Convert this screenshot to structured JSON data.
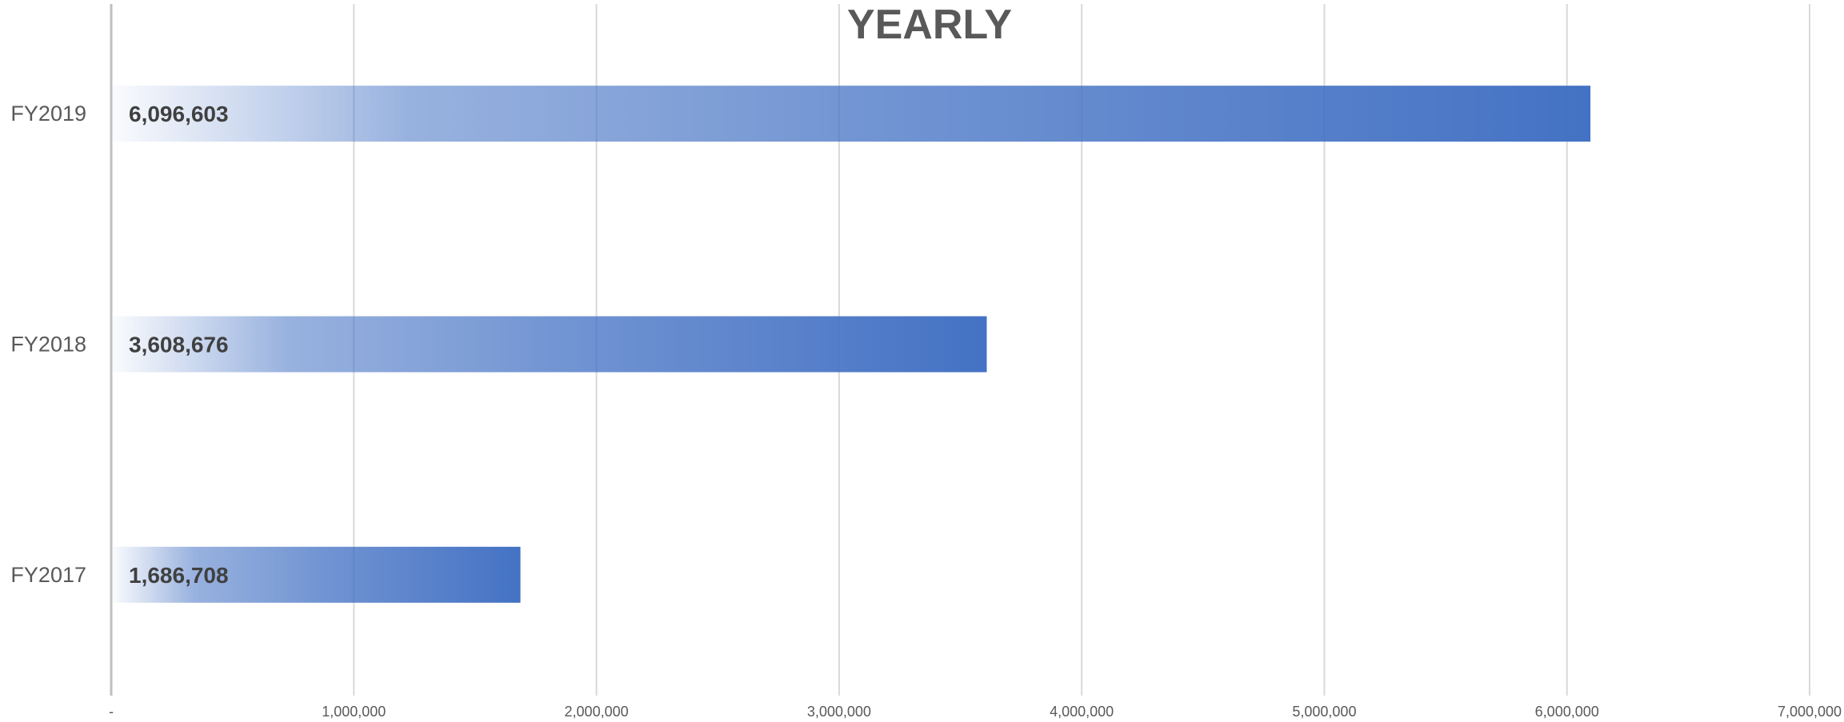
{
  "chart_data": {
    "type": "bar",
    "orientation": "horizontal",
    "title": "YEARLY",
    "categories": [
      "FY2019",
      "FY2018",
      "FY2017"
    ],
    "values": [
      6096603,
      3608676,
      1686708
    ],
    "value_labels": [
      "6,096,603",
      "3,608,676",
      "1,686,708"
    ],
    "xlim": [
      0,
      7000000
    ],
    "x_ticks": [
      0,
      1000000,
      2000000,
      3000000,
      4000000,
      5000000,
      6000000,
      7000000
    ],
    "x_tick_labels": [
      "-",
      "1,000,000",
      "2,000,000",
      "3,000,000",
      "4,000,000",
      "5,000,000",
      "6,000,000",
      "7,000,000"
    ],
    "grid": "vertical",
    "legend": "none",
    "colors": {
      "bar": "#4472C4",
      "grid": "#D9D9D9",
      "axis": "#BFBFBF"
    }
  }
}
